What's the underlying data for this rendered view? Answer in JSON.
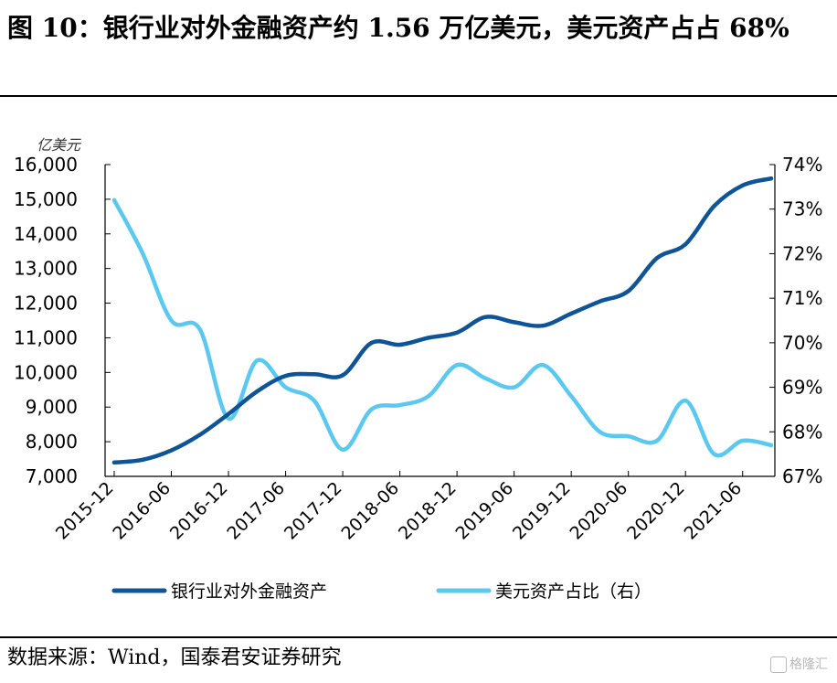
{
  "header": {
    "title": "图 10：银行业对外金融资产约 1.56 万亿美元，美元资产占占 68%"
  },
  "footer": {
    "source": "数据来源：Wind，国泰君安证券研究",
    "watermark": "格隆汇",
    "watermark_icon": "g-logo-icon"
  },
  "chart_data": {
    "type": "line",
    "y_unit_label": "亿美元",
    "y_left": {
      "ylim": [
        7000,
        16000
      ],
      "ticks": [
        "7,000",
        "8,000",
        "9,000",
        "10,000",
        "11,000",
        "12,000",
        "13,000",
        "14,000",
        "15,000",
        "16,000"
      ]
    },
    "y_right": {
      "ylim": [
        67,
        74
      ],
      "ticks": [
        "67%",
        "68%",
        "69%",
        "70%",
        "71%",
        "72%",
        "73%",
        "74%"
      ]
    },
    "x": [
      "2015-12",
      "2016-03",
      "2016-06",
      "2016-09",
      "2016-12",
      "2017-03",
      "2017-06",
      "2017-09",
      "2017-12",
      "2018-03",
      "2018-06",
      "2018-09",
      "2018-12",
      "2019-03",
      "2019-06",
      "2019-09",
      "2019-12",
      "2020-03",
      "2020-06",
      "2020-09",
      "2020-12",
      "2021-03",
      "2021-06",
      "2021-09"
    ],
    "x_tick_labels": [
      "2015-12",
      "2016-06",
      "2016-12",
      "2017-06",
      "2017-12",
      "2018-06",
      "2018-12",
      "2019-06",
      "2019-12",
      "2020-06",
      "2020-12",
      "2021-06"
    ],
    "series": [
      {
        "name": "银行业对外金融资产",
        "axis": "left",
        "color": "#0f5496",
        "values": [
          7400,
          7480,
          7750,
          8200,
          8800,
          9450,
          9900,
          9950,
          9920,
          10850,
          10800,
          11000,
          11150,
          11600,
          11450,
          11350,
          11700,
          12050,
          12350,
          13300,
          13700,
          14800,
          15400,
          15600
        ]
      },
      {
        "name": "美元资产占比（右）",
        "axis": "right",
        "color": "#5bc8f0",
        "values": [
          73.2,
          72.0,
          70.5,
          70.3,
          68.3,
          69.6,
          69.0,
          68.7,
          67.6,
          68.5,
          68.6,
          68.8,
          69.5,
          69.2,
          69.0,
          69.5,
          68.8,
          68.0,
          67.9,
          67.8,
          68.7,
          67.5,
          67.8,
          67.7
        ]
      }
    ],
    "legend_position": "bottom",
    "grid": false
  }
}
